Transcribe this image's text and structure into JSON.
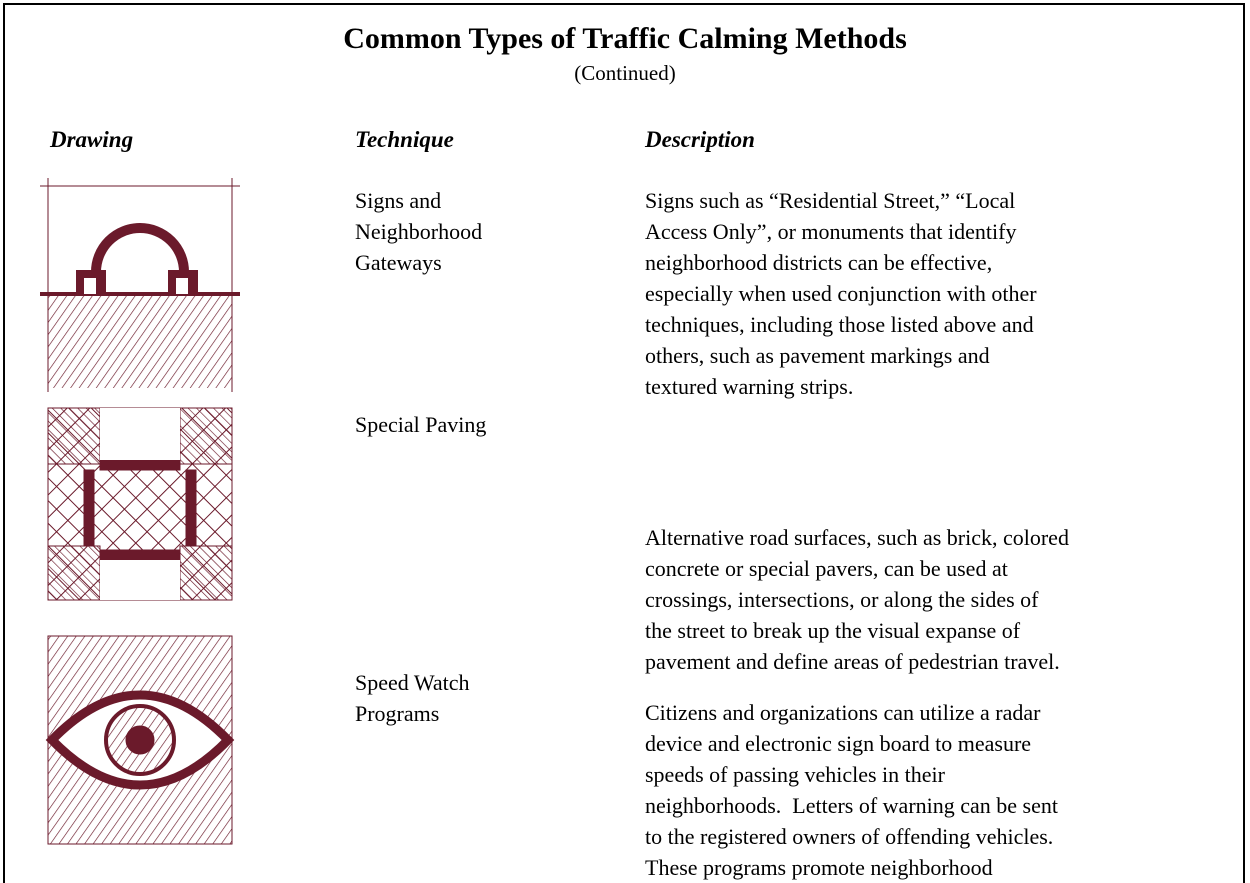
{
  "header": {
    "title": "Common Types of Traffic Calming Methods",
    "subtitle": "(Continued)"
  },
  "columns": [
    "Drawing",
    "Technique",
    "Description"
  ],
  "rows": [
    {
      "technique": [
        "Signs and",
        "Neighborhood",
        "Gateways"
      ],
      "description": [
        "Signs such as “Residential Street,” “Local",
        "Access Only”, or monuments that identify",
        "neighborhood districts can be effective,",
        "especially when used conjunction with other",
        "techniques, including those listed above and",
        "others, such as pavement markings and",
        "textured warning strips."
      ]
    },
    {
      "technique": [
        "Special Paving"
      ],
      "description": [
        "Alternative road surfaces, such as brick, colored",
        "concrete or special pavers, can be used at",
        "crossings, intersections, or along the sides of",
        "the street to break up the visual expanse of",
        "pavement and define areas of pedestrian travel."
      ]
    },
    {
      "technique": [
        "Speed Watch",
        "Programs"
      ],
      "description": [
        "Citizens and organizations can utilize a radar",
        "device and electronic sign board to measure",
        "speeds of passing vehicles in their",
        "neighborhoods.  Letters of warning can be sent",
        "to the registered owners of offending vehicles.",
        "These programs promote neighborhood"
      ]
    }
  ]
}
